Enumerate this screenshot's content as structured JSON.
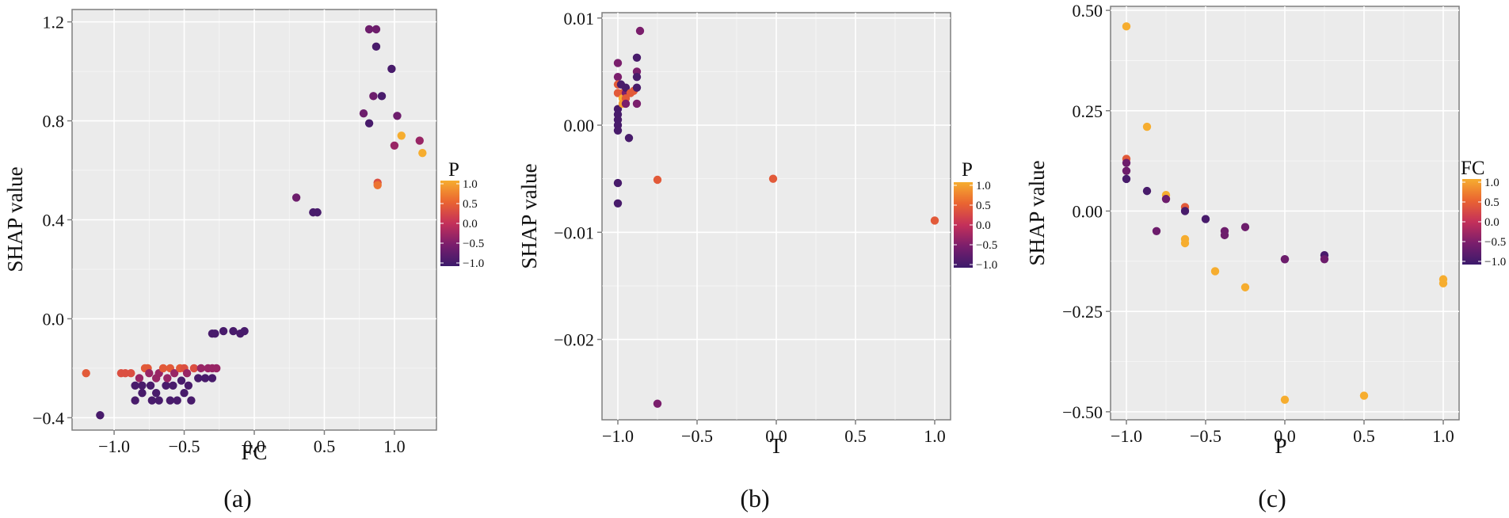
{
  "colors": {
    "panel_bg": "#ebebeb",
    "grid": "#ffffff",
    "axis": "#7f7f7f",
    "palette": [
      "#3b1a6b",
      "#7a1e6c",
      "#c4305a",
      "#ea6431",
      "#f6ad2f"
    ]
  },
  "chart_data": [
    {
      "type": "scatter",
      "panel_label": "(a)",
      "xlabel": "FC",
      "ylabel": "SHAP value",
      "xlim": [
        -1.3,
        1.3
      ],
      "ylim": [
        -0.45,
        1.25
      ],
      "xticks": [
        -1.0,
        -0.5,
        0.0,
        0.5,
        1.0
      ],
      "xtick_labels": [
        "−1.0",
        "−0.5",
        "0.0",
        "0.5",
        "1.0"
      ],
      "yticks": [
        -0.4,
        0.0,
        0.4,
        0.8,
        1.2
      ],
      "ytick_labels": [
        "−0.4",
        "0.0",
        "0.4",
        "0.8",
        "1.2"
      ],
      "grid": true,
      "color_variable": "P",
      "colorbar": {
        "title": "P",
        "ticks": [
          1.0,
          0.5,
          0.0,
          -0.5,
          -1.0
        ],
        "tick_labels": [
          "1.0",
          "0.5",
          "0.0",
          "−0.5",
          "−1.0"
        ],
        "range": [
          -1.0,
          1.0
        ]
      },
      "points": [
        {
          "x": -1.2,
          "y": -0.22,
          "c": 0.4
        },
        {
          "x": -1.1,
          "y": -0.39,
          "c": -0.9
        },
        {
          "x": -0.95,
          "y": -0.22,
          "c": 0.3
        },
        {
          "x": -0.92,
          "y": -0.22,
          "c": 0.3
        },
        {
          "x": -0.88,
          "y": -0.22,
          "c": 0.3
        },
        {
          "x": -0.85,
          "y": -0.27,
          "c": -0.9
        },
        {
          "x": -0.85,
          "y": -0.33,
          "c": -0.9
        },
        {
          "x": -0.82,
          "y": -0.24,
          "c": -0.3
        },
        {
          "x": -0.8,
          "y": -0.27,
          "c": -0.9
        },
        {
          "x": -0.8,
          "y": -0.3,
          "c": -0.9
        },
        {
          "x": -0.78,
          "y": -0.2,
          "c": 0.4
        },
        {
          "x": -0.76,
          "y": -0.2,
          "c": 0.4
        },
        {
          "x": -0.75,
          "y": -0.22,
          "c": -0.3
        },
        {
          "x": -0.74,
          "y": -0.27,
          "c": -0.9
        },
        {
          "x": -0.73,
          "y": -0.33,
          "c": -0.9
        },
        {
          "x": -0.7,
          "y": -0.24,
          "c": -0.3
        },
        {
          "x": -0.7,
          "y": -0.3,
          "c": -0.9
        },
        {
          "x": -0.68,
          "y": -0.22,
          "c": -0.3
        },
        {
          "x": -0.68,
          "y": -0.33,
          "c": -0.9
        },
        {
          "x": -0.65,
          "y": -0.2,
          "c": 0.4
        },
        {
          "x": -0.63,
          "y": -0.27,
          "c": -0.9
        },
        {
          "x": -0.62,
          "y": -0.24,
          "c": -0.3
        },
        {
          "x": -0.6,
          "y": -0.2,
          "c": 0.4
        },
        {
          "x": -0.6,
          "y": -0.33,
          "c": -0.9
        },
        {
          "x": -0.58,
          "y": -0.27,
          "c": -0.9
        },
        {
          "x": -0.57,
          "y": -0.22,
          "c": -0.3
        },
        {
          "x": -0.55,
          "y": -0.33,
          "c": -0.9
        },
        {
          "x": -0.53,
          "y": -0.2,
          "c": 0.4
        },
        {
          "x": -0.52,
          "y": -0.25,
          "c": -0.9
        },
        {
          "x": -0.5,
          "y": -0.3,
          "c": -0.9
        },
        {
          "x": -0.5,
          "y": -0.2,
          "c": 0.3
        },
        {
          "x": -0.48,
          "y": -0.22,
          "c": -0.3
        },
        {
          "x": -0.47,
          "y": -0.27,
          "c": -0.9
        },
        {
          "x": -0.45,
          "y": -0.33,
          "c": -0.9
        },
        {
          "x": -0.43,
          "y": -0.2,
          "c": 0.3
        },
        {
          "x": -0.4,
          "y": -0.24,
          "c": -0.9
        },
        {
          "x": -0.38,
          "y": -0.2,
          "c": -0.3
        },
        {
          "x": -0.35,
          "y": -0.24,
          "c": -0.9
        },
        {
          "x": -0.33,
          "y": -0.2,
          "c": -0.3
        },
        {
          "x": -0.3,
          "y": -0.2,
          "c": -0.3
        },
        {
          "x": -0.3,
          "y": -0.24,
          "c": -0.9
        },
        {
          "x": -0.3,
          "y": -0.06,
          "c": -0.9
        },
        {
          "x": -0.28,
          "y": -0.06,
          "c": -0.9
        },
        {
          "x": -0.27,
          "y": -0.2,
          "c": -0.3
        },
        {
          "x": -0.22,
          "y": -0.05,
          "c": -0.9
        },
        {
          "x": -0.15,
          "y": -0.05,
          "c": -0.9
        },
        {
          "x": -0.1,
          "y": -0.06,
          "c": -0.9
        },
        {
          "x": -0.07,
          "y": -0.05,
          "c": -0.9
        },
        {
          "x": 0.3,
          "y": 0.49,
          "c": -0.6
        },
        {
          "x": 0.42,
          "y": 0.43,
          "c": -0.9
        },
        {
          "x": 0.45,
          "y": 0.43,
          "c": -0.9
        },
        {
          "x": 0.78,
          "y": 0.83,
          "c": -0.6
        },
        {
          "x": 0.82,
          "y": 0.79,
          "c": -0.9
        },
        {
          "x": 0.82,
          "y": 1.17,
          "c": -0.6
        },
        {
          "x": 0.85,
          "y": 0.9,
          "c": -0.6
        },
        {
          "x": 0.87,
          "y": 1.17,
          "c": -0.6
        },
        {
          "x": 0.87,
          "y": 1.1,
          "c": -0.9
        },
        {
          "x": 0.88,
          "y": 0.55,
          "c": 0.3
        },
        {
          "x": 0.88,
          "y": 0.54,
          "c": 0.6
        },
        {
          "x": 0.91,
          "y": 0.9,
          "c": -0.9
        },
        {
          "x": 0.98,
          "y": 1.01,
          "c": -0.9
        },
        {
          "x": 1.0,
          "y": 0.7,
          "c": -0.3
        },
        {
          "x": 1.02,
          "y": 0.82,
          "c": -0.6
        },
        {
          "x": 1.05,
          "y": 0.74,
          "c": 1.0
        },
        {
          "x": 1.18,
          "y": 0.72,
          "c": -0.3
        },
        {
          "x": 1.2,
          "y": 0.67,
          "c": 1.0
        }
      ]
    },
    {
      "type": "scatter",
      "panel_label": "(b)",
      "xlabel": "T",
      "ylabel": "SHAP value",
      "xlim": [
        -1.1,
        1.1
      ],
      "ylim": [
        -0.0275,
        0.0105
      ],
      "xticks": [
        -1.0,
        -0.5,
        0.0,
        0.5,
        1.0
      ],
      "xtick_labels": [
        "−1.0",
        "−0.5",
        "0.0",
        "0.5",
        "1.0"
      ],
      "yticks": [
        -0.02,
        -0.01,
        0.0,
        0.01
      ],
      "ytick_labels": [
        "−0.02",
        "−0.01",
        "0.00",
        "0.01"
      ],
      "grid": true,
      "color_variable": "P",
      "colorbar": {
        "title": "P",
        "ticks": [
          1.0,
          0.5,
          0.0,
          -0.5,
          -1.0
        ],
        "tick_labels": [
          "1.0",
          "0.5",
          "0.0",
          "−0.5",
          "−1.0"
        ],
        "range": [
          -1.0,
          1.0
        ]
      },
      "points": [
        {
          "x": -1.0,
          "y": 0.0058,
          "c": -0.5
        },
        {
          "x": -1.0,
          "y": 0.0045,
          "c": -0.5
        },
        {
          "x": -1.0,
          "y": 0.0038,
          "c": 0.4
        },
        {
          "x": -1.0,
          "y": 0.003,
          "c": 0.4
        },
        {
          "x": -1.0,
          "y": 0.0015,
          "c": -0.9
        },
        {
          "x": -1.0,
          "y": 0.001,
          "c": -0.9
        },
        {
          "x": -1.0,
          "y": 0.0005,
          "c": -0.9
        },
        {
          "x": -1.0,
          "y": 0.0,
          "c": -0.9
        },
        {
          "x": -1.0,
          "y": -0.0005,
          "c": -0.9
        },
        {
          "x": -1.0,
          "y": -0.0054,
          "c": -0.9
        },
        {
          "x": -1.0,
          "y": -0.0073,
          "c": -0.9
        },
        {
          "x": -0.98,
          "y": 0.0038,
          "c": -0.9
        },
        {
          "x": -0.97,
          "y": 0.003,
          "c": 0.4
        },
        {
          "x": -0.97,
          "y": 0.0025,
          "c": 1.0
        },
        {
          "x": -0.97,
          "y": 0.002,
          "c": 0.9
        },
        {
          "x": -0.95,
          "y": 0.003,
          "c": -0.5
        },
        {
          "x": -0.95,
          "y": 0.0035,
          "c": -0.9
        },
        {
          "x": -0.95,
          "y": 0.0025,
          "c": 0.4
        },
        {
          "x": -0.95,
          "y": 0.002,
          "c": -0.5
        },
        {
          "x": -0.93,
          "y": -0.0012,
          "c": -0.9
        },
        {
          "x": -0.92,
          "y": 0.003,
          "c": 0.4
        },
        {
          "x": -0.9,
          "y": 0.0032,
          "c": 0.4
        },
        {
          "x": -0.88,
          "y": 0.0063,
          "c": -0.9
        },
        {
          "x": -0.88,
          "y": 0.005,
          "c": -0.5
        },
        {
          "x": -0.88,
          "y": 0.0045,
          "c": -0.9
        },
        {
          "x": -0.88,
          "y": 0.0035,
          "c": -0.9
        },
        {
          "x": -0.88,
          "y": 0.002,
          "c": -0.5
        },
        {
          "x": -0.86,
          "y": 0.0088,
          "c": -0.5
        },
        {
          "x": -0.75,
          "y": -0.0051,
          "c": 0.4
        },
        {
          "x": -0.75,
          "y": -0.026,
          "c": -0.5
        },
        {
          "x": -0.02,
          "y": -0.005,
          "c": 0.4
        },
        {
          "x": 1.0,
          "y": -0.0089,
          "c": 0.4
        }
      ]
    },
    {
      "type": "scatter",
      "panel_label": "(c)",
      "xlabel": "P",
      "ylabel": "SHAP value",
      "xlim": [
        -1.1,
        1.1
      ],
      "ylim": [
        -0.52,
        0.51
      ],
      "xticks": [
        -1.0,
        -0.5,
        0.0,
        0.5,
        1.0
      ],
      "xtick_labels": [
        "−1.0",
        "−0.5",
        "0.0",
        "0.5",
        "1.0"
      ],
      "yticks": [
        -0.5,
        -0.25,
        0.0,
        0.25,
        0.5
      ],
      "ytick_labels": [
        "−0.50",
        "−0.25",
        "0.00",
        "0.25",
        "0.50"
      ],
      "grid": true,
      "color_variable": "FC",
      "colorbar": {
        "title": "FC",
        "ticks": [
          1.0,
          0.5,
          0.0,
          -0.5,
          -1.0
        ],
        "tick_labels": [
          "1.0",
          "0.5",
          "0.0",
          "−0.5",
          "−1.0"
        ],
        "range": [
          -1.0,
          1.0
        ]
      },
      "points": [
        {
          "x": -1.0,
          "y": 0.46,
          "c": 1.0
        },
        {
          "x": -1.0,
          "y": 0.13,
          "c": 0.4
        },
        {
          "x": -1.0,
          "y": 0.12,
          "c": -0.6
        },
        {
          "x": -1.0,
          "y": 0.1,
          "c": -0.6
        },
        {
          "x": -1.0,
          "y": 0.08,
          "c": -0.9
        },
        {
          "x": -0.87,
          "y": 0.21,
          "c": 1.0
        },
        {
          "x": -0.87,
          "y": 0.05,
          "c": -0.9
        },
        {
          "x": -0.81,
          "y": -0.05,
          "c": -0.6
        },
        {
          "x": -0.75,
          "y": 0.04,
          "c": 1.0
        },
        {
          "x": -0.75,
          "y": 0.03,
          "c": -0.6
        },
        {
          "x": -0.63,
          "y": 0.01,
          "c": 0.4
        },
        {
          "x": -0.63,
          "y": 0.0,
          "c": -0.9
        },
        {
          "x": -0.63,
          "y": -0.07,
          "c": 1.0
        },
        {
          "x": -0.63,
          "y": -0.08,
          "c": 1.0
        },
        {
          "x": -0.5,
          "y": -0.02,
          "c": -0.9
        },
        {
          "x": -0.44,
          "y": -0.15,
          "c": 1.0
        },
        {
          "x": -0.38,
          "y": -0.05,
          "c": -0.6
        },
        {
          "x": -0.38,
          "y": -0.06,
          "c": -0.6
        },
        {
          "x": -0.25,
          "y": -0.04,
          "c": -0.6
        },
        {
          "x": -0.25,
          "y": -0.19,
          "c": 1.0
        },
        {
          "x": 0.0,
          "y": -0.12,
          "c": -0.9
        },
        {
          "x": 0.0,
          "y": -0.12,
          "c": -0.6
        },
        {
          "x": 0.0,
          "y": -0.47,
          "c": 1.0
        },
        {
          "x": 0.25,
          "y": -0.11,
          "c": -0.9
        },
        {
          "x": 0.25,
          "y": -0.12,
          "c": -0.6
        },
        {
          "x": 0.5,
          "y": -0.46,
          "c": 1.0
        },
        {
          "x": 1.0,
          "y": -0.17,
          "c": 1.0
        },
        {
          "x": 1.0,
          "y": -0.18,
          "c": 1.0
        }
      ]
    }
  ]
}
